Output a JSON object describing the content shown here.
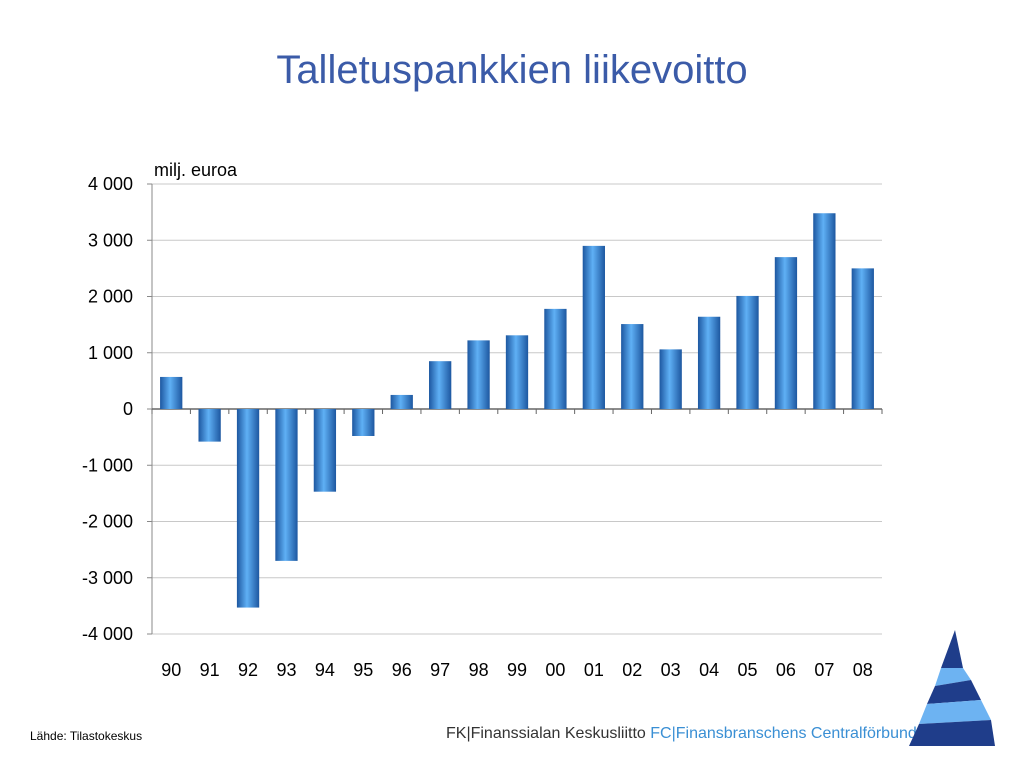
{
  "title": "Talletuspankkien liikevoitto",
  "source": "Lähde: Tilastokeskus",
  "footer": {
    "fk_text": "FK|Finanssialan Keskusliitto",
    "fc_text": "FC|Finansbranschens Centralförbund"
  },
  "colors": {
    "title": "#3b5ba8",
    "bar": "#3d8ad6",
    "grid": "#c8c8c8",
    "logo_dark": "#1f3d8a",
    "logo_light": "#6db3f2"
  },
  "chart_data": {
    "type": "bar",
    "unit_label": "milj. euroa",
    "categories": [
      "90",
      "91",
      "92",
      "93",
      "94",
      "95",
      "96",
      "97",
      "98",
      "99",
      "00",
      "01",
      "02",
      "03",
      "04",
      "05",
      "06",
      "07",
      "08"
    ],
    "values": [
      570,
      -580,
      -3530,
      -2700,
      -1470,
      -480,
      250,
      850,
      1220,
      1310,
      1780,
      2900,
      1510,
      1060,
      1640,
      2010,
      2700,
      3480,
      2500
    ],
    "ylim": [
      -4000,
      4000
    ],
    "yticks": [
      4000,
      3000,
      2000,
      1000,
      0,
      -1000,
      -2000,
      -3000,
      -4000
    ],
    "ytick_labels": [
      "4 000",
      "3 000",
      "2 000",
      "1 000",
      "0",
      "-1 000",
      "-2 000",
      "-3 000",
      "-4 000"
    ],
    "grid": true,
    "legend": false
  }
}
